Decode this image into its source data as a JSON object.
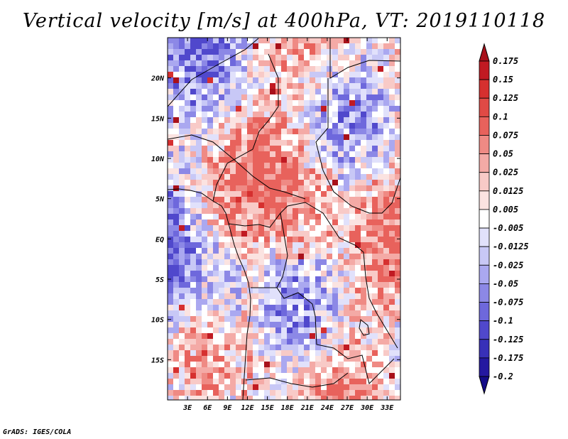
{
  "title": "Vertical velocity [m/s] at 400hPa, VT: 2019110118",
  "footer": "GrADS: IGES/COLA",
  "map": {
    "lat_labels": [
      "20N",
      "15N",
      "10N",
      "5N",
      "EQ",
      "5S",
      "10S",
      "15S"
    ],
    "lat_values": [
      20,
      15,
      10,
      5,
      0,
      -5,
      -10,
      -15
    ],
    "lon_labels": [
      "3E",
      "6E",
      "9E",
      "12E",
      "15E",
      "18E",
      "21E",
      "24E",
      "27E",
      "30E",
      "33E"
    ],
    "lon_values": [
      3,
      6,
      9,
      12,
      15,
      18,
      21,
      24,
      27,
      30,
      33
    ],
    "lat_range": [
      -20,
      25
    ],
    "lon_range": [
      0,
      35
    ]
  },
  "colorbar": {
    "levels": [
      "0.175",
      "0.15",
      "0.125",
      "0.1",
      "0.075",
      "0.05",
      "0.025",
      "0.0125",
      "0.005",
      "-0.005",
      "-0.0125",
      "-0.025",
      "-0.05",
      "-0.075",
      "-0.1",
      "-0.125",
      "-0.175",
      "-0.2"
    ],
    "colors": [
      "#a8101a",
      "#c11a22",
      "#d6302f",
      "#e04a45",
      "#e8625c",
      "#ef8a84",
      "#f4aaa6",
      "#f8cac7",
      "#fbe3e1",
      "#ffffff",
      "#e1e1fb",
      "#c8c8f6",
      "#aaa8f0",
      "#8c88e6",
      "#6e68dc",
      "#5048cc",
      "#3830b8",
      "#2418a0",
      "#140c88"
    ]
  }
}
